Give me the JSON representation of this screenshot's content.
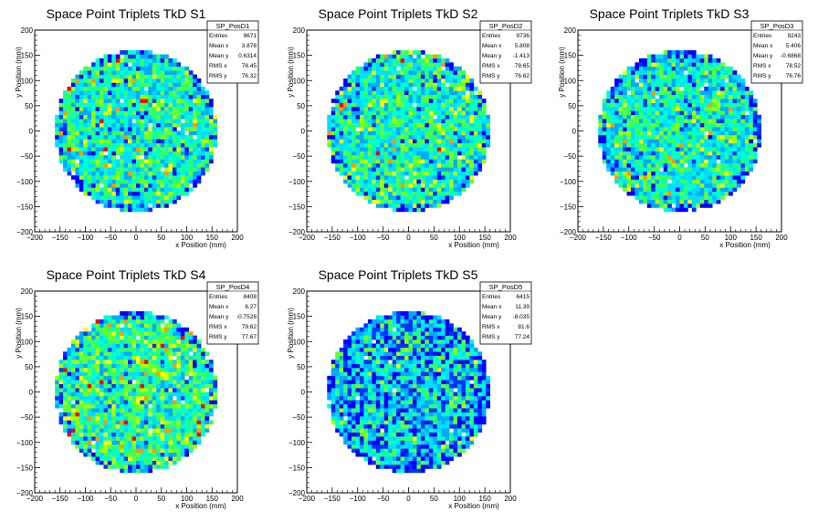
{
  "chart_data": [
    {
      "type": "heatmap",
      "title": "Space Point Triplets TkD S1",
      "xlabel": "x Position (mm)",
      "ylabel": "y Position (mm)",
      "xlim": [
        -200,
        200
      ],
      "ylim": [
        -200,
        200
      ],
      "xticks": [
        "−200",
        "−150",
        "−100",
        "−50",
        "0",
        "50",
        "100",
        "150",
        "200"
      ],
      "yticks": [
        "−200",
        "−150",
        "−100",
        "−50",
        "0",
        "50",
        "100",
        "150",
        "200"
      ],
      "histogram_radius_mm": 160,
      "bin_width_mm": 8,
      "stats": {
        "name": "SP_PosD1",
        "rows": [
          {
            "label": "Entries",
            "value": "9671"
          },
          {
            "label": "Mean x",
            "value": "3.878"
          },
          {
            "label": "Mean y",
            "value": "0.6314"
          },
          {
            "label": "RMS x",
            "value": "78.45"
          },
          {
            "label": "RMS y",
            "value": "76.32"
          }
        ]
      }
    },
    {
      "type": "heatmap",
      "title": "Space Point Triplets TkD S2",
      "xlabel": "x Position (mm)",
      "ylabel": "y Position (mm)",
      "xlim": [
        -200,
        200
      ],
      "ylim": [
        -200,
        200
      ],
      "xticks": [
        "−200",
        "−150",
        "−100",
        "−50",
        "0",
        "50",
        "100",
        "150",
        "200"
      ],
      "yticks": [
        "−200",
        "−150",
        "−100",
        "−50",
        "0",
        "50",
        "100",
        "150",
        "200"
      ],
      "histogram_radius_mm": 160,
      "bin_width_mm": 8,
      "stats": {
        "name": "SP_PosD2",
        "rows": [
          {
            "label": "Entries",
            "value": "9736"
          },
          {
            "label": "Mean x",
            "value": "5.808"
          },
          {
            "label": "Mean y",
            "value": "-1.413"
          },
          {
            "label": "RMS x",
            "value": "78.65"
          },
          {
            "label": "RMS y",
            "value": "76.62"
          }
        ]
      }
    },
    {
      "type": "heatmap",
      "title": "Space Point Triplets TkD S3",
      "xlabel": "x Position (mm)",
      "ylabel": "y Position (mm)",
      "xlim": [
        -200,
        200
      ],
      "ylim": [
        -200,
        200
      ],
      "xticks": [
        "−200",
        "−150",
        "−100",
        "−50",
        "0",
        "50",
        "100",
        "150",
        "200"
      ],
      "yticks": [
        "−200",
        "−150",
        "−100",
        "−50",
        "0",
        "50",
        "100",
        "150",
        "200"
      ],
      "histogram_radius_mm": 160,
      "bin_width_mm": 8,
      "stats": {
        "name": "SP_PosD3",
        "rows": [
          {
            "label": "Entries",
            "value": "9243"
          },
          {
            "label": "Mean x",
            "value": "5.406"
          },
          {
            "label": "Mean y",
            "value": "-0.6868"
          },
          {
            "label": "RMS x",
            "value": "78.52"
          },
          {
            "label": "RMS y",
            "value": "76.76"
          }
        ]
      }
    },
    {
      "type": "heatmap",
      "title": "Space Point Triplets TkD S4",
      "xlabel": "x Position (mm)",
      "ylabel": "y Position (mm)",
      "xlim": [
        -200,
        200
      ],
      "ylim": [
        -200,
        200
      ],
      "xticks": [
        "−200",
        "−150",
        "−100",
        "−50",
        "0",
        "50",
        "100",
        "150",
        "200"
      ],
      "yticks": [
        "−200",
        "−150",
        "−100",
        "−50",
        "0",
        "50",
        "100",
        "150",
        "200"
      ],
      "histogram_radius_mm": 160,
      "bin_width_mm": 8,
      "stats": {
        "name": "SP_PosD4",
        "rows": [
          {
            "label": "Entries",
            "value": "8408"
          },
          {
            "label": "Mean x",
            "value": "6.27"
          },
          {
            "label": "Mean y",
            "value": "-0.7528"
          },
          {
            "label": "RMS x",
            "value": "79.62"
          },
          {
            "label": "RMS y",
            "value": "77.67"
          }
        ]
      }
    },
    {
      "type": "heatmap",
      "title": "Space Point Triplets TkD S5",
      "xlabel": "x Position (mm)",
      "ylabel": "y Position (mm)",
      "xlim": [
        -200,
        200
      ],
      "ylim": [
        -200,
        200
      ],
      "xticks": [
        "−200",
        "−150",
        "−100",
        "−50",
        "0",
        "50",
        "100",
        "150",
        "200"
      ],
      "yticks": [
        "−200",
        "−150",
        "−100",
        "−50",
        "0",
        "50",
        "100",
        "150",
        "200"
      ],
      "histogram_radius_mm": 160,
      "bin_width_mm": 8,
      "stats": {
        "name": "SP_PosD5",
        "rows": [
          {
            "label": "Entries",
            "value": "6415"
          },
          {
            "label": "Mean x",
            "value": "11.39"
          },
          {
            "label": "Mean y",
            "value": "-8.035"
          },
          {
            "label": "RMS x",
            "value": "81.6"
          },
          {
            "label": "RMS y",
            "value": "77.24"
          }
        ]
      }
    }
  ],
  "colors": {
    "palette": [
      "#0000ff",
      "#0033ff",
      "#00aaff",
      "#00ddff",
      "#00ffcc",
      "#33ff66",
      "#66ff33",
      "#aaff00",
      "#ffff00",
      "#ff9900",
      "#ff0000"
    ],
    "palette_weights_by_plot": [
      [
        0.02,
        0.03,
        0.14,
        0.2,
        0.22,
        0.17,
        0.11,
        0.06,
        0.03,
        0.015,
        0.005
      ],
      [
        0.02,
        0.03,
        0.14,
        0.2,
        0.22,
        0.17,
        0.11,
        0.06,
        0.03,
        0.015,
        0.005
      ],
      [
        0.02,
        0.04,
        0.16,
        0.22,
        0.22,
        0.16,
        0.1,
        0.05,
        0.02,
        0.01,
        0.0
      ],
      [
        0.01,
        0.02,
        0.1,
        0.18,
        0.22,
        0.18,
        0.13,
        0.08,
        0.05,
        0.02,
        0.01
      ],
      [
        0.16,
        0.14,
        0.18,
        0.18,
        0.14,
        0.1,
        0.06,
        0.03,
        0.01,
        0.0,
        0.0
      ]
    ]
  }
}
